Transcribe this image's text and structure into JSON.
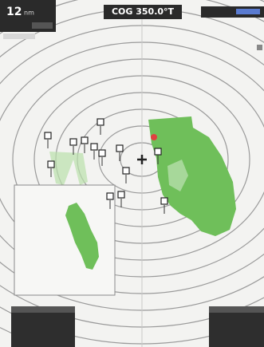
{
  "top_bar": {
    "range": "12",
    "range_unit": "nm",
    "cog": "COG 350.0°T"
  }
}
